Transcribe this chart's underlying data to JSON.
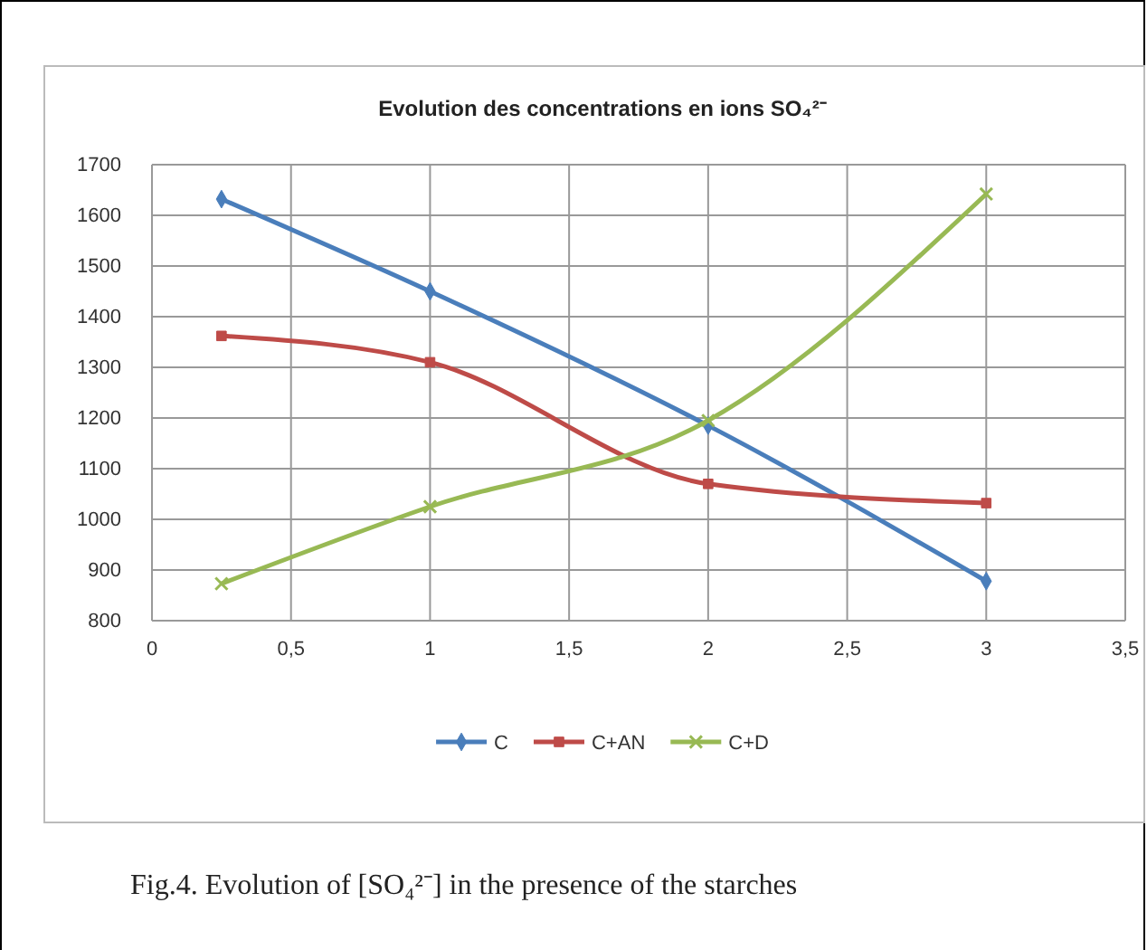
{
  "chart_data": {
    "type": "line",
    "title": "Evolution des concentrations en ions SO₄²⁻",
    "annotations": [
      "Fig.4. Evolution of [SO₄²⁻] in the presence of the starches"
    ],
    "x": [
      0.25,
      1,
      2,
      3
    ],
    "series": [
      {
        "name": "C",
        "color": "#4a7ebb",
        "values": [
          1632,
          1450,
          1185,
          878
        ],
        "marker": "diamond"
      },
      {
        "name": "C+AN",
        "color": "#be4b48",
        "values": [
          1362,
          1310,
          1070,
          1032
        ],
        "marker": "square"
      },
      {
        "name": "C+D",
        "color": "#98b954",
        "values": [
          873,
          1025,
          1195,
          1642
        ],
        "marker": "cross"
      }
    ],
    "xlim": [
      0,
      3.5
    ],
    "xticks": [
      0,
      {
        "value": 0.5,
        "label": "0,5"
      },
      1,
      {
        "value": 1.5,
        "label": "1,5"
      },
      2,
      {
        "value": 2.5,
        "label": "2,5"
      },
      3,
      {
        "value": 3.5,
        "label": "3,5"
      }
    ],
    "ylim": [
      800,
      1700
    ],
    "yticks": [
      800,
      900,
      1000,
      1100,
      1200,
      1300,
      1400,
      1500,
      1600,
      1700
    ],
    "grid": true,
    "legend": "bottom",
    "line_style": "solid"
  }
}
